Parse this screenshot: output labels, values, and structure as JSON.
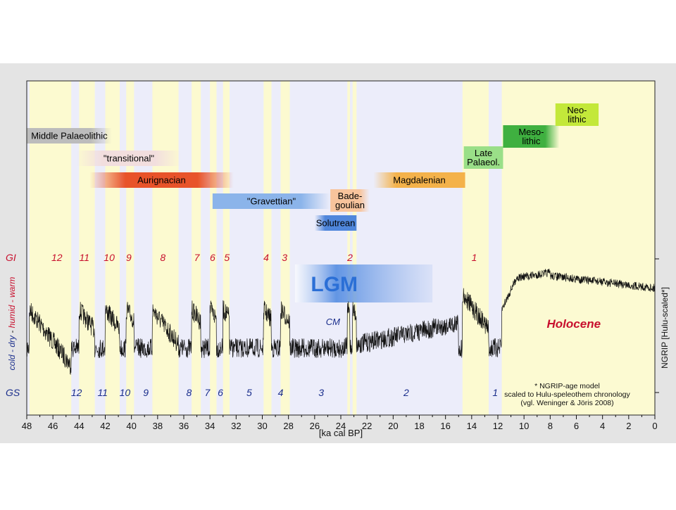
{
  "colors": {
    "frame_bg": "#e4e4e4",
    "glacial_bg": "#ecedfa",
    "interstadial_bg": "#fcfad0",
    "holocene_bg": "#fcfad2",
    "gi_text": "#c8102e",
    "gs_text": "#1a2e8c",
    "curve": "#111111",
    "lgm_blue": "#2b6fd6"
  },
  "chart_data": {
    "type": "line",
    "x_reversed": true,
    "xlim": [
      48,
      0
    ],
    "xlabel": "[ka cal BP]",
    "x_ticks": [
      "48",
      "46",
      "44",
      "42",
      "40",
      "38",
      "36",
      "34",
      "32",
      "30",
      "28",
      "26",
      "24",
      "22",
      "20",
      "18",
      "16",
      "14",
      "12",
      "10",
      "8",
      "6",
      "4",
      "2",
      "0"
    ],
    "ylabel_right": "NGRIP  [Hulu-scaled*]",
    "ylabel_left": {
      "cold": "cold - dry",
      "sep": "-",
      "warm": "humid - warm"
    },
    "gi_label": "GI",
    "gs_label": "GS",
    "gi_numbers": [
      {
        "t": "12",
        "x": 45.7
      },
      {
        "t": "11",
        "x": 43.6
      },
      {
        "t": "10",
        "x": 41.7
      },
      {
        "t": "9",
        "x": 40.2
      },
      {
        "t": "8",
        "x": 37.6
      },
      {
        "t": "7",
        "x": 35.0
      },
      {
        "t": "6",
        "x": 33.8
      },
      {
        "t": "5",
        "x": 32.7
      },
      {
        "t": "4",
        "x": 29.7
      },
      {
        "t": "3",
        "x": 28.3
      },
      {
        "t": "2",
        "x": 23.3
      },
      {
        "t": "1",
        "x": 13.8
      }
    ],
    "gs_numbers": [
      {
        "t": "12",
        "x": 44.2
      },
      {
        "t": "11",
        "x": 42.2
      },
      {
        "t": "10",
        "x": 40.5
      },
      {
        "t": "9",
        "x": 38.9
      },
      {
        "t": "8",
        "x": 35.6
      },
      {
        "t": "7",
        "x": 34.2
      },
      {
        "t": "6",
        "x": 33.2
      },
      {
        "t": "5",
        "x": 31.0
      },
      {
        "t": "4",
        "x": 28.6
      },
      {
        "t": "3",
        "x": 25.5
      },
      {
        "t": "2",
        "x": 19.0
      },
      {
        "t": "1",
        "x": 12.2
      }
    ],
    "interstadials": [
      [
        47.8,
        44.6
      ],
      [
        44.0,
        42.8
      ],
      [
        42.0,
        40.9
      ],
      [
        40.4,
        39.8
      ],
      [
        38.4,
        36.4
      ],
      [
        35.4,
        34.7
      ],
      [
        34.0,
        33.5
      ],
      [
        33.0,
        32.5
      ],
      [
        29.9,
        29.3
      ],
      [
        28.6,
        27.9
      ],
      [
        23.5,
        23.3
      ],
      [
        23.1,
        22.8
      ],
      [
        14.7,
        12.7
      ]
    ],
    "holocene_start": 11.7,
    "holocene_label": "Holocene",
    "lgm_label": "LGM",
    "lgm_range": [
      27.5,
      17.0
    ],
    "cm_label": "CM",
    "cm_x": 24.6,
    "footnote": [
      "* NGRIP-age model",
      "scaled to Hulu-speleothem chronology",
      "(vgl. Weninger & Jöris 2008)"
    ],
    "cultures": [
      {
        "name": "Middle Palaeolithic",
        "start": 48.0,
        "end": 41.5,
        "color": "#bcbcbc",
        "fade": "right",
        "row": 0
      },
      {
        "name": "\"transitional\"",
        "start": 44.2,
        "end": 36.2,
        "color": "#f2dede",
        "fade": "both",
        "row": 1
      },
      {
        "name": "Aurignacian",
        "start": 43.2,
        "end": 32.2,
        "color": "#e8532a",
        "fade": "both",
        "row": 2
      },
      {
        "name": "\"Gravettian\"",
        "start": 33.8,
        "end": 24.8,
        "color": "#8bb4ea",
        "fade": "right",
        "row": 3
      },
      {
        "name": "Bade-\ngoulian",
        "start": 24.8,
        "end": 21.8,
        "color": "#f8c49c",
        "fade": "right",
        "row": 3
      },
      {
        "name": "Solutrean",
        "start": 26.0,
        "end": 22.8,
        "color": "#4f86db",
        "fade": "left",
        "row": 4
      },
      {
        "name": "Magdalenian",
        "start": 21.5,
        "end": 14.5,
        "color": "#f4b24a",
        "fade": "left",
        "row": 5
      },
      {
        "name": "Late\nPalaeol.",
        "start": 14.6,
        "end": 11.6,
        "color": "#9adf88",
        "fade": "none",
        "row": 6
      },
      {
        "name": "Meso-\nlithic",
        "start": 11.6,
        "end": 7.3,
        "color": "#3fb040",
        "fade": "right",
        "row": 7
      },
      {
        "name": "Neo-\nlithic",
        "start": 7.6,
        "end": 4.3,
        "color": "#c3e83a",
        "fade": "none",
        "row": 8
      }
    ]
  }
}
